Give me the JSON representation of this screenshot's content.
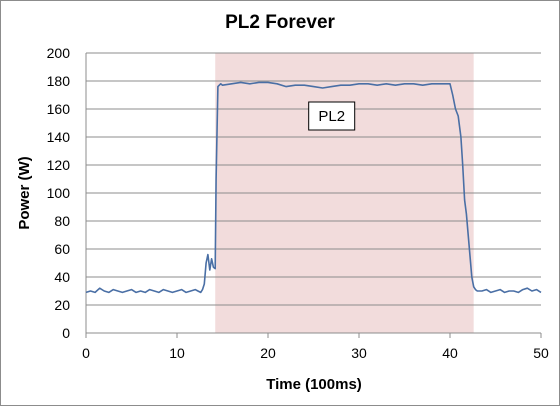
{
  "chart_data": {
    "type": "line",
    "title": "PL2 Forever",
    "xlabel": "Time (100ms)",
    "ylabel": "Power (W)",
    "xlim": [
      0,
      50
    ],
    "ylim": [
      0,
      200
    ],
    "xticks": [
      0,
      10,
      20,
      30,
      40,
      50
    ],
    "yticks": [
      0,
      20,
      40,
      60,
      80,
      100,
      120,
      140,
      160,
      180,
      200
    ],
    "grid": "horizontal",
    "legend": "none",
    "shaded_region": {
      "x": [
        14.2,
        42.6
      ],
      "color": "#f2dcdc"
    },
    "annotation": {
      "text": "PL2",
      "x": 27,
      "y": 155
    },
    "series": [
      {
        "color": "#4a6fa5",
        "x": [
          0,
          0.5,
          1,
          1.5,
          2,
          2.5,
          3,
          3.5,
          4,
          4.5,
          5,
          5.5,
          6,
          6.5,
          7,
          7.5,
          8,
          8.5,
          9,
          9.5,
          10,
          10.5,
          11,
          11.5,
          12,
          12.3,
          12.6,
          12.8,
          13,
          13.2,
          13.4,
          13.6,
          13.8,
          14,
          14.2,
          14.3,
          14.5,
          14.8,
          15,
          16,
          17,
          18,
          19,
          20,
          21,
          22,
          23,
          24,
          25,
          26,
          27,
          28,
          29,
          30,
          31,
          32,
          33,
          34,
          35,
          36,
          37,
          38,
          39,
          40,
          40.3,
          40.6,
          40.9,
          41.2,
          41.4,
          41.6,
          41.8,
          42,
          42.2,
          42.4,
          42.6,
          42.8,
          43,
          43.5,
          44,
          44.5,
          45,
          45.5,
          46,
          46.5,
          47,
          47.5,
          48,
          48.5,
          49,
          49.5,
          50
        ],
        "y": [
          29,
          30,
          29,
          32,
          30,
          29,
          31,
          30,
          29,
          30,
          31,
          29,
          30,
          29,
          31,
          30,
          29,
          31,
          30,
          29,
          30,
          31,
          29,
          30,
          31,
          30,
          29,
          31,
          35,
          50,
          56,
          45,
          53,
          47,
          46,
          110,
          176,
          178,
          177,
          178,
          179,
          178,
          179,
          179,
          178,
          176,
          177,
          177,
          176,
          175,
          176,
          177,
          177,
          178,
          178,
          177,
          178,
          177,
          178,
          178,
          177,
          178,
          178,
          178,
          170,
          160,
          155,
          140,
          120,
          95,
          85,
          70,
          55,
          40,
          33,
          31,
          30,
          30,
          31,
          29,
          30,
          31,
          29,
          30,
          30,
          29,
          31,
          32,
          30,
          31,
          29
        ]
      }
    ]
  }
}
